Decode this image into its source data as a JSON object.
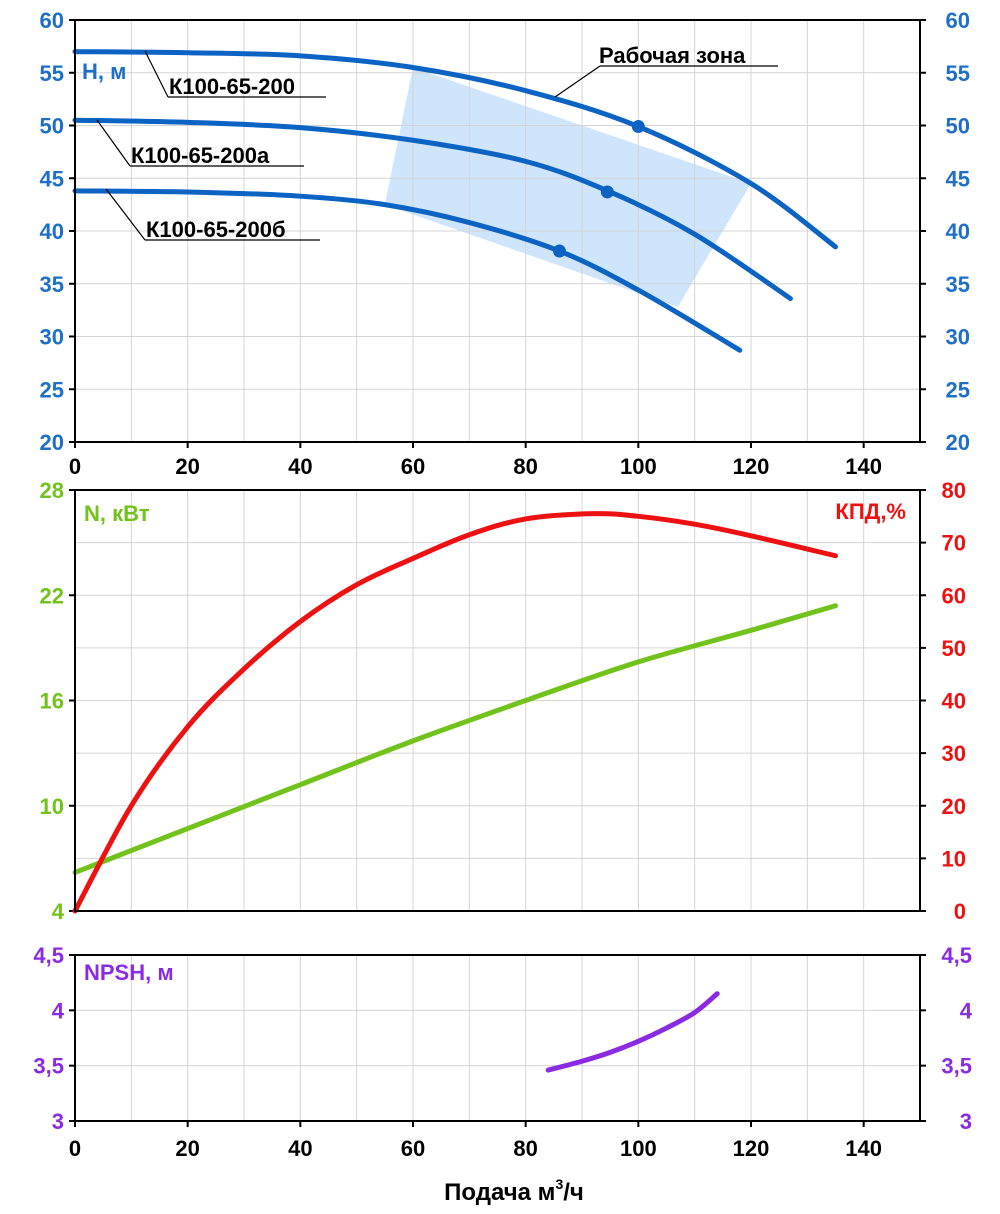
{
  "colors": {
    "head": "#0b63c4",
    "head_label": "#1f6fc7",
    "zone_fill": "#cfe5fb",
    "power": "#72c21c",
    "efficiency": "#ee1111",
    "npsh": "#8a2be2",
    "grid": "#d4d4d4",
    "frame": "#000000"
  },
  "chart_data": [
    {
      "type": "line",
      "panel": "head",
      "ylabel": "H, м",
      "xlim": [
        0,
        150
      ],
      "ylim": [
        20,
        60
      ],
      "x_ticks": [
        "0",
        "20",
        "40",
        "60",
        "80",
        "100",
        "120",
        "140"
      ],
      "y_ticks": [
        "20",
        "25",
        "30",
        "35",
        "40",
        "45",
        "50",
        "55",
        "60"
      ],
      "grid": true,
      "axes": "left-right",
      "zone_label": "Рабочая зона",
      "zone_polygon": [
        [
          60,
          55.5
        ],
        [
          120,
          44.5
        ],
        [
          107,
          32.8
        ],
        [
          55,
          42.5
        ]
      ],
      "series": [
        {
          "name": "К100-65-200",
          "x": [
            0,
            20,
            40,
            60,
            80,
            100,
            120,
            135
          ],
          "y": [
            57,
            56.9,
            56.6,
            55.5,
            53.3,
            49.9,
            44.5,
            38.5
          ],
          "marker": [
            100,
            49.9
          ]
        },
        {
          "name": "К100-65-200а",
          "x": [
            0,
            20,
            40,
            60,
            80,
            95,
            110,
            127
          ],
          "y": [
            50.5,
            50.3,
            49.8,
            48.6,
            46.6,
            43.7,
            39.7,
            33.6
          ],
          "marker": [
            94.5,
            43.7
          ]
        },
        {
          "name": "К100-65-200б",
          "x": [
            0,
            20,
            40,
            55,
            70,
            86,
            100,
            118
          ],
          "y": [
            43.8,
            43.7,
            43.3,
            42.5,
            40.8,
            38.1,
            34.4,
            28.7
          ],
          "marker": [
            86,
            38.1
          ]
        }
      ]
    },
    {
      "type": "line",
      "panel": "power-efficiency",
      "ylabel_left": "N, кВт",
      "ylabel_right": "КПД,%",
      "xlim": [
        0,
        150
      ],
      "ylim_left": [
        4,
        28
      ],
      "ylim_right": [
        0,
        80
      ],
      "y_ticks_left": [
        "4",
        "10",
        "16",
        "22",
        "28"
      ],
      "y_ticks_right": [
        "0",
        "10",
        "20",
        "30",
        "40",
        "50",
        "60",
        "70",
        "80"
      ],
      "grid": true,
      "series": [
        {
          "name": "N, кВт",
          "axis": "left",
          "x": [
            0,
            20,
            40,
            60,
            80,
            100,
            120,
            135
          ],
          "y": [
            6.2,
            8.7,
            11.2,
            13.7,
            16.0,
            18.2,
            20.0,
            21.4
          ]
        },
        {
          "name": "КПД,%",
          "axis": "right",
          "x": [
            0,
            10,
            20,
            30,
            40,
            50,
            60,
            70,
            80,
            92,
            100,
            110,
            120,
            135
          ],
          "y": [
            0,
            20,
            35,
            46,
            55,
            62,
            67,
            71.5,
            74.5,
            75.5,
            75,
            73.5,
            71.3,
            67.5
          ]
        }
      ]
    },
    {
      "type": "line",
      "panel": "npsh",
      "ylabel": "NPSH, м",
      "xlabel": "Подача м",
      "xlabel_sup": "3",
      "xlabel_tail": "/ч",
      "xlim": [
        0,
        150
      ],
      "ylim": [
        3,
        4.5
      ],
      "x_ticks": [
        "0",
        "20",
        "40",
        "60",
        "80",
        "100",
        "120",
        "140"
      ],
      "y_ticks": [
        "3",
        "3,5",
        "4",
        "4,5"
      ],
      "grid": true,
      "series": [
        {
          "name": "NPSH, м",
          "x": [
            84,
            90,
            95,
            100,
            105,
            110,
            114
          ],
          "y": [
            3.46,
            3.54,
            3.62,
            3.72,
            3.84,
            3.98,
            4.15
          ]
        }
      ]
    }
  ]
}
